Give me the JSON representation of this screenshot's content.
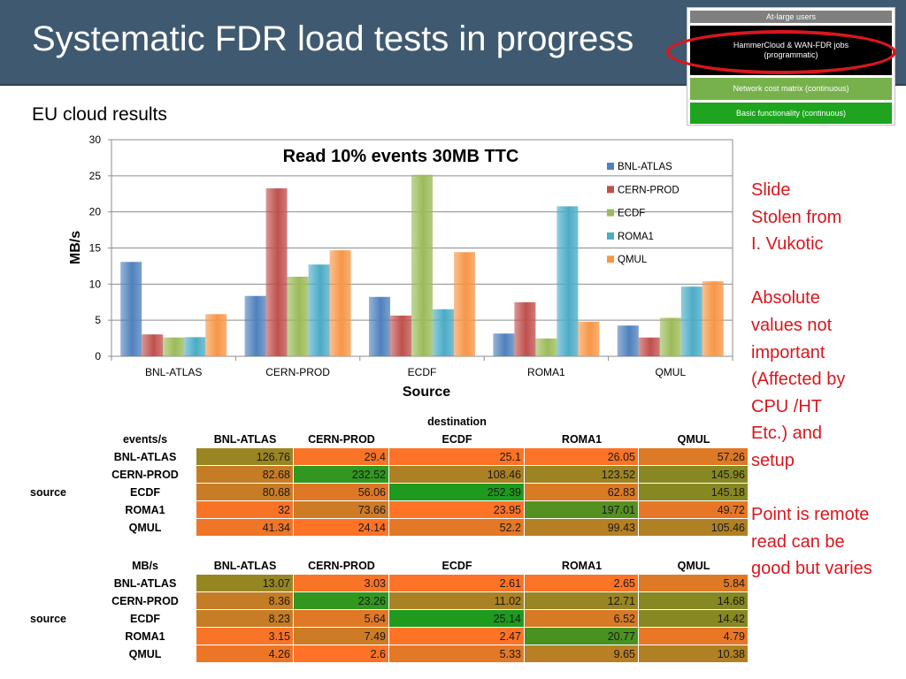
{
  "slide": {
    "title": "Systematic FDR load tests in progress",
    "subtitle": "EU cloud results",
    "side_note": "Slide\nStolen from\nI. Vukotic\n\nAbsolute\nvalues not\nimportant\n(Affected by\nCPU /HT\nEtc.) and\nsetup\n\nPoint is remote\nread can be\ngood but varies"
  },
  "pyramid": {
    "level1": "At-large users",
    "level2_line1": "HammerCloud & WAN-FDR jobs",
    "level2_line2": "(programmatic)",
    "level3": "Network cost matrix (continuous)",
    "level4": "Basic functionality (continuous)"
  },
  "colors": {
    "title_bar": "#3f5a70",
    "highlight_ellipse": "#d9171e",
    "note_text": "#d9171e",
    "heat_low": "#ff7327",
    "heat_high": "#1e9a1e"
  },
  "chart_data": {
    "type": "bar",
    "title": "Read 10% events 30MB TTC",
    "xlabel": "Source",
    "ylabel": "MB/s",
    "ylim": [
      0,
      30
    ],
    "yticks": [
      0,
      5,
      10,
      15,
      20,
      25,
      30
    ],
    "grid": true,
    "legend_position": "right",
    "categories": [
      "BNL-ATLAS",
      "CERN-PROD",
      "ECDF",
      "ROMA1",
      "QMUL"
    ],
    "series": [
      {
        "name": "BNL-ATLAS",
        "color": "#4f81bd",
        "values": [
          13.07,
          8.36,
          8.23,
          3.15,
          4.26
        ]
      },
      {
        "name": "CERN-PROD",
        "color": "#c0504d",
        "values": [
          3.03,
          23.26,
          5.64,
          7.49,
          2.6
        ]
      },
      {
        "name": "ECDF",
        "color": "#9bbb59",
        "values": [
          2.61,
          11.02,
          25.14,
          2.47,
          5.33
        ]
      },
      {
        "name": "ROMA1",
        "color": "#4bacc6",
        "values": [
          2.65,
          12.71,
          6.52,
          20.77,
          9.65
        ]
      },
      {
        "name": "QMUL",
        "color": "#f79646",
        "values": [
          5.84,
          14.68,
          14.42,
          4.79,
          10.38
        ]
      }
    ]
  },
  "tables": {
    "destination_label": "destination",
    "source_label": "source",
    "columns": [
      "BNL-ATLAS",
      "CERN-PROD",
      "ECDF",
      "ROMA1",
      "QMUL"
    ],
    "rows": [
      "BNL-ATLAS",
      "CERN-PROD",
      "ECDF",
      "ROMA1",
      "QMUL"
    ],
    "events": {
      "header": "events/s",
      "values": [
        [
          "126.76",
          "29.4",
          "25.1",
          "26.05",
          "57.26"
        ],
        [
          "82.68",
          "232.52",
          "108.46",
          "123.52",
          "145.96"
        ],
        [
          "80.68",
          "56.06",
          "252.39",
          "62.83",
          "145.18"
        ],
        [
          "32",
          "73.66",
          "23.95",
          "197.01",
          "49.72"
        ],
        [
          "41.34",
          "24.14",
          "52.2",
          "99.43",
          "105.46"
        ]
      ]
    },
    "mbs": {
      "header": "MB/s",
      "values": [
        [
          "13.07",
          "3.03",
          "2.61",
          "2.65",
          "5.84"
        ],
        [
          "8.36",
          "23.26",
          "11.02",
          "12.71",
          "14.68"
        ],
        [
          "8.23",
          "5.64",
          "25.14",
          "6.52",
          "14.42"
        ],
        [
          "3.15",
          "7.49",
          "2.47",
          "20.77",
          "4.79"
        ],
        [
          "4.26",
          "2.6",
          "5.33",
          "9.65",
          "10.38"
        ]
      ]
    }
  }
}
